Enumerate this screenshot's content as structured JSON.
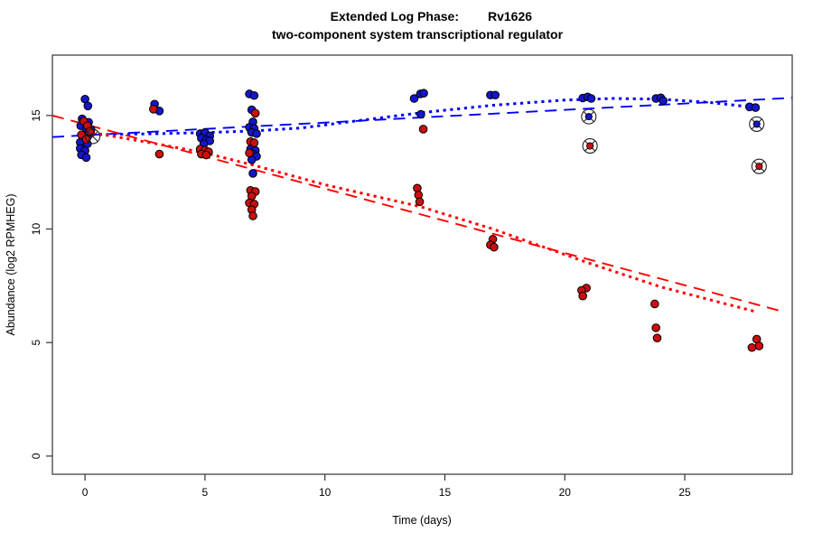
{
  "window": {
    "background": "#ffffff"
  },
  "chart_data": {
    "type": "scatter",
    "title_prefix": "Extended Log Phase:",
    "title_gene": "Rv1626",
    "subtitle": "two-component system transcriptional regulator",
    "xlabel": "Time  (days)",
    "ylabel": "Abundance  (log2 RPMHEG)",
    "xlim": [
      -1.36,
      29.48
    ],
    "ylim": [
      -0.8,
      17.66
    ],
    "x_ticks": [
      0,
      5,
      10,
      15,
      20,
      25
    ],
    "y_ticks": [
      0,
      5,
      10,
      15
    ],
    "grid": false,
    "legend": "none",
    "colors": {
      "blue_point": "#1515CD",
      "red_point": "#CC0E0E",
      "blue_line": "#0000FF",
      "red_line": "#FF0000",
      "point_edge": "#000000",
      "highlight_ring": "#222222",
      "frame": "#333333"
    },
    "series": [
      {
        "name": "blue-samples",
        "marker": "filled-circle",
        "color": "#1515CD",
        "points": [
          [
            0.0,
            15.72
          ],
          [
            0.12,
            15.42
          ],
          [
            -0.12,
            14.85
          ],
          [
            0.15,
            14.7
          ],
          [
            -0.18,
            14.55
          ],
          [
            0.05,
            14.42
          ],
          [
            0.25,
            14.38
          ],
          [
            -0.05,
            14.1
          ],
          [
            0.1,
            14.05
          ],
          [
            -0.2,
            13.82
          ],
          [
            0.1,
            13.75
          ],
          [
            -0.2,
            13.55
          ],
          [
            0.0,
            13.45
          ],
          [
            -0.15,
            13.27
          ],
          [
            0.05,
            13.15
          ],
          [
            2.9,
            15.5
          ],
          [
            3.1,
            15.2
          ],
          [
            4.8,
            14.2
          ],
          [
            5.0,
            14.25
          ],
          [
            5.2,
            14.1
          ],
          [
            4.85,
            14.0
          ],
          [
            5.05,
            13.92
          ],
          [
            5.2,
            13.88
          ],
          [
            4.95,
            13.75
          ],
          [
            6.85,
            15.95
          ],
          [
            7.05,
            15.88
          ],
          [
            6.95,
            15.25
          ],
          [
            7.0,
            14.72
          ],
          [
            6.85,
            14.48
          ],
          [
            7.05,
            14.43
          ],
          [
            6.95,
            14.25
          ],
          [
            7.15,
            14.2
          ],
          [
            6.9,
            13.52
          ],
          [
            7.1,
            13.46
          ],
          [
            7.0,
            13.3
          ],
          [
            7.15,
            13.2
          ],
          [
            6.95,
            13.05
          ],
          [
            7.0,
            12.45
          ],
          [
            13.72,
            15.75
          ],
          [
            13.98,
            15.95
          ],
          [
            14.12,
            15.98
          ],
          [
            14.0,
            15.05
          ],
          [
            16.9,
            15.9
          ],
          [
            17.1,
            15.9
          ],
          [
            20.75,
            15.77
          ],
          [
            20.95,
            15.82
          ],
          [
            21.1,
            15.75
          ],
          [
            23.8,
            15.75
          ],
          [
            24.0,
            15.78
          ],
          [
            24.1,
            15.65
          ],
          [
            27.7,
            15.38
          ],
          [
            27.95,
            15.35
          ]
        ]
      },
      {
        "name": "red-samples",
        "marker": "filled-circle",
        "color": "#CC0E0E",
        "points": [
          [
            -0.05,
            14.75
          ],
          [
            0.1,
            14.55
          ],
          [
            0.2,
            14.3
          ],
          [
            -0.15,
            14.15
          ],
          [
            0.05,
            13.95
          ],
          [
            2.85,
            15.28
          ],
          [
            3.1,
            13.3
          ],
          [
            4.8,
            13.52
          ],
          [
            5.0,
            13.47
          ],
          [
            5.15,
            13.4
          ],
          [
            4.85,
            13.3
          ],
          [
            5.05,
            13.26
          ],
          [
            7.1,
            15.1
          ],
          [
            6.9,
            13.85
          ],
          [
            7.05,
            13.8
          ],
          [
            6.85,
            13.35
          ],
          [
            6.9,
            11.7
          ],
          [
            7.1,
            11.65
          ],
          [
            6.95,
            11.45
          ],
          [
            6.85,
            11.15
          ],
          [
            7.05,
            11.1
          ],
          [
            6.95,
            10.85
          ],
          [
            7.0,
            10.58
          ],
          [
            14.1,
            14.4
          ],
          [
            13.85,
            11.8
          ],
          [
            13.9,
            11.5
          ],
          [
            13.95,
            11.2
          ],
          [
            17.0,
            9.55
          ],
          [
            16.9,
            9.3
          ],
          [
            17.05,
            9.2
          ],
          [
            20.9,
            7.4
          ],
          [
            20.7,
            7.3
          ],
          [
            20.75,
            7.05
          ],
          [
            23.75,
            6.7
          ],
          [
            23.8,
            5.65
          ],
          [
            23.85,
            5.2
          ],
          [
            28.0,
            5.15
          ],
          [
            28.1,
            4.85
          ],
          [
            27.8,
            4.78
          ]
        ]
      },
      {
        "name": "highlighted-blue",
        "marker": "circle-x-ring",
        "color": "#1515CD",
        "points": [
          [
            21.0,
            14.95
          ],
          [
            28.0,
            14.62
          ]
        ]
      },
      {
        "name": "highlighted-red",
        "marker": "circle-x-ring",
        "color": "#CC0E0E",
        "points": [
          [
            21.05,
            13.66
          ],
          [
            28.1,
            12.76
          ]
        ]
      },
      {
        "name": "highlighted-open",
        "marker": "circle-x-ring",
        "color": "none",
        "points": [
          [
            0.32,
            14.08
          ]
        ]
      }
    ],
    "lines": [
      {
        "name": "blue-linear-fit",
        "style": "dashed",
        "color": "#0000FF",
        "points": [
          [
            -1.36,
            14.05
          ],
          [
            29.48,
            15.78
          ]
        ]
      },
      {
        "name": "blue-smooth-fit",
        "style": "dotted",
        "color": "#0000FF",
        "points": [
          [
            0,
            14.15
          ],
          [
            3,
            14.2
          ],
          [
            5,
            14.25
          ],
          [
            7,
            14.32
          ],
          [
            9,
            14.45
          ],
          [
            11,
            14.72
          ],
          [
            14,
            15.12
          ],
          [
            17,
            15.45
          ],
          [
            20,
            15.68
          ],
          [
            22,
            15.75
          ],
          [
            24,
            15.72
          ],
          [
            26,
            15.58
          ],
          [
            28,
            15.35
          ]
        ]
      },
      {
        "name": "red-linear-fit",
        "style": "dashed",
        "color": "#FF0000",
        "points": [
          [
            -1.36,
            15.0
          ],
          [
            29.15,
            6.35
          ]
        ]
      },
      {
        "name": "red-smooth-fit",
        "style": "dotted",
        "color": "#FF0000",
        "points": [
          [
            0,
            14.3
          ],
          [
            3,
            13.75
          ],
          [
            5,
            13.35
          ],
          [
            7,
            12.82
          ],
          [
            10,
            11.95
          ],
          [
            14,
            10.98
          ],
          [
            17,
            10.0
          ],
          [
            19,
            9.25
          ],
          [
            21,
            8.5
          ],
          [
            24,
            7.45
          ],
          [
            26,
            6.9
          ],
          [
            28,
            6.35
          ]
        ]
      }
    ]
  }
}
